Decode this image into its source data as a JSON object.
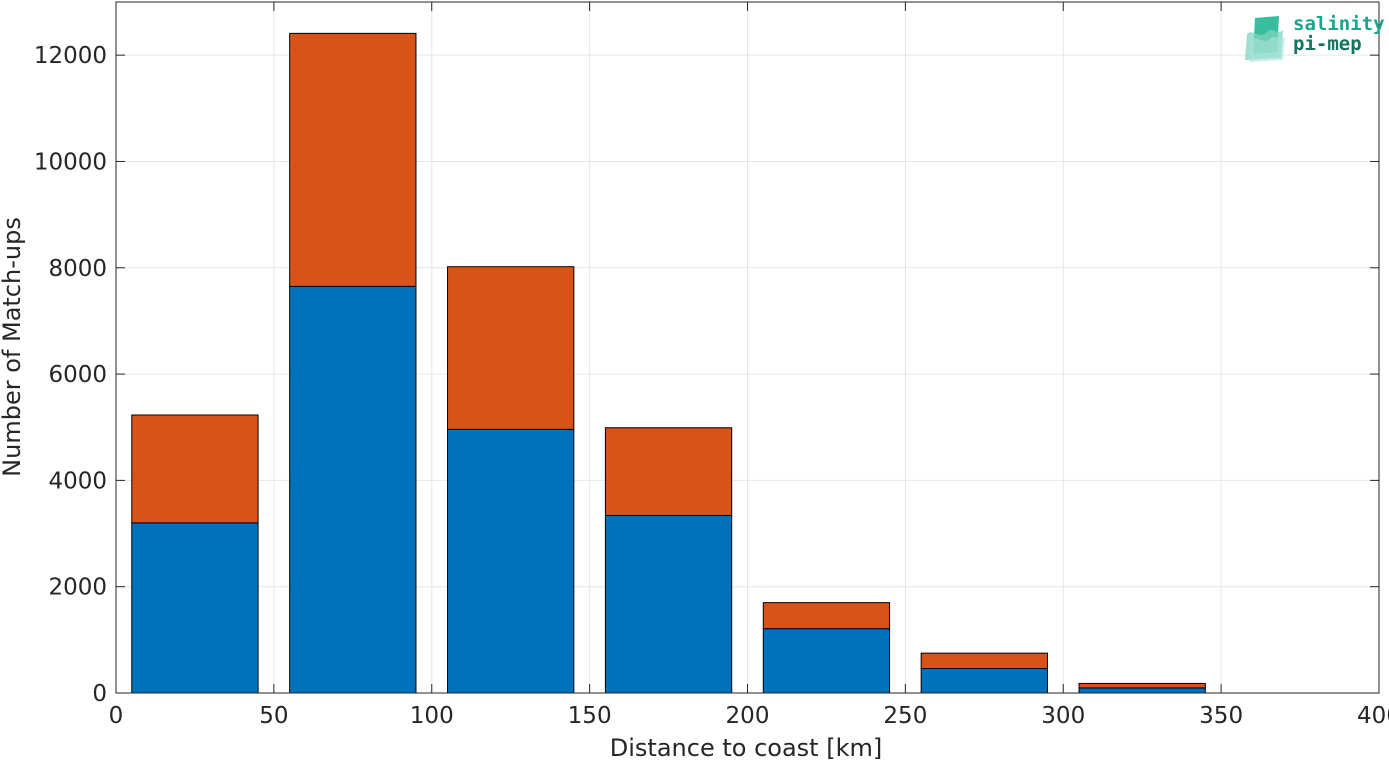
{
  "chart_data": {
    "type": "bar",
    "stacked": true,
    "xlabel": "Distance to coast [km]",
    "ylabel": "Number of Match-ups",
    "xlim": [
      0,
      400
    ],
    "ylim": [
      0,
      13000
    ],
    "xticks": [
      0,
      50,
      100,
      150,
      200,
      250,
      300,
      350,
      400
    ],
    "yticks": [
      0,
      2000,
      4000,
      6000,
      8000,
      10000,
      12000
    ],
    "grid": true,
    "bin_centers": [
      25,
      75,
      125,
      175,
      225,
      275,
      325
    ],
    "bin_width": 40,
    "series": [
      {
        "color": "#0072bd",
        "values": [
          3200,
          7650,
          4960,
          3340,
          1210,
          460,
          95
        ]
      },
      {
        "color": "#d95319",
        "values": [
          2030,
          4760,
          3060,
          1650,
          490,
          290,
          85
        ]
      }
    ]
  },
  "logo": {
    "line1": "salinity",
    "line2": "pi-mep",
    "colors": [
      "#1aa58c",
      "#13735f"
    ]
  }
}
